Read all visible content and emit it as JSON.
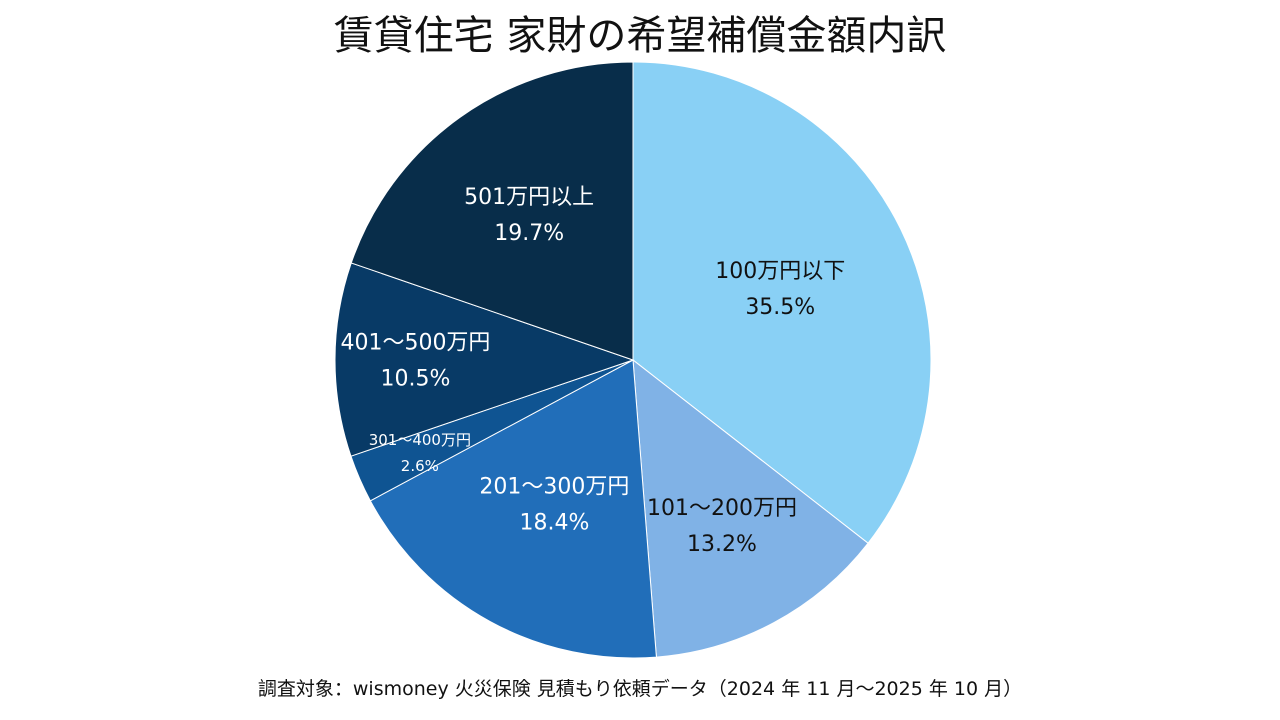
{
  "chart_data": {
    "type": "pie",
    "title": "賃貸住宅 家財の希望補償金額内訳",
    "slices": [
      {
        "label": "100万円以下",
        "value": 35.5,
        "value_label": "35.5%",
        "color": "#89d0f5",
        "text_color": "#111111"
      },
      {
        "label": "101〜200万円",
        "value": 13.2,
        "value_label": "13.2%",
        "color": "#80b2e6",
        "text_color": "#111111"
      },
      {
        "label": "201〜300万円",
        "value": 18.4,
        "value_label": "18.4%",
        "color": "#216eb9",
        "text_color": "#ffffff"
      },
      {
        "label": "301〜400万円",
        "value": 2.6,
        "value_label": "2.6%",
        "color": "#0f5492",
        "text_color": "#ffffff"
      },
      {
        "label": "401〜500万円",
        "value": 10.5,
        "value_label": "10.5%",
        "color": "#083a66",
        "text_color": "#ffffff"
      },
      {
        "label": "501万円以上",
        "value": 19.7,
        "value_label": "19.7%",
        "color": "#082d4a",
        "text_color": "#ffffff"
      }
    ],
    "start_angle": "12 o'clock",
    "direction": "clockwise",
    "legend": "none"
  },
  "footer": {
    "source": "調査対象：wismoney 火災保険 見積もり依頼データ（2024 年 11 月〜2025 年 10 月）"
  }
}
